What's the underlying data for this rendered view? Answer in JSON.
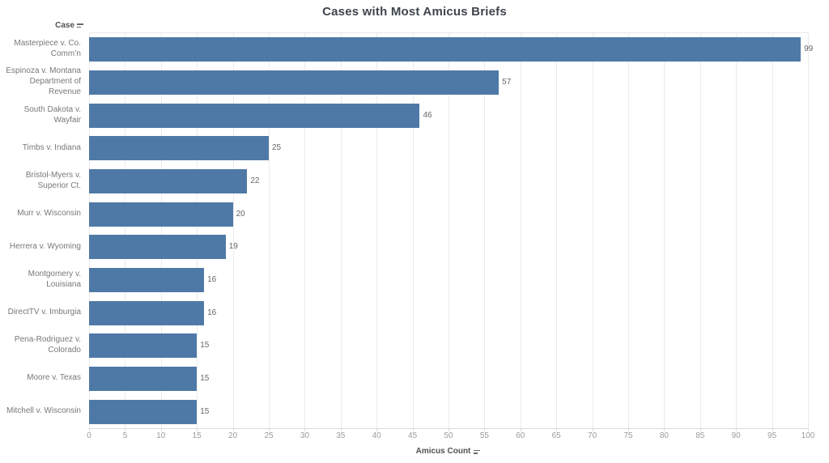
{
  "title": "Cases with Most Amicus Briefs",
  "row_axis": {
    "label": "Case",
    "sort_icon": "sort-descending-icon"
  },
  "x_axis": {
    "label": "Amicus Count",
    "sort_icon": "sort-descending-icon",
    "ticks": [
      0,
      5,
      10,
      15,
      20,
      25,
      30,
      35,
      40,
      45,
      50,
      55,
      60,
      65,
      70,
      75,
      80,
      85,
      90,
      95,
      100
    ]
  },
  "chart_data": {
    "type": "bar",
    "orientation": "horizontal",
    "title": "Cases with Most Amicus Briefs",
    "xlabel": "Amicus Count",
    "ylabel": "Case",
    "categories": [
      "Masterpiece v. Co. Comm’n",
      "Espinoza v. Montana Department of Revenue",
      "South Dakota v. Wayfair",
      "Timbs v. Indiana",
      "Bristol-Myers v. Superior Ct.",
      "Murr v. Wisconsin",
      "Herrera v. Wyoming",
      "Montgomery v. Louisiana",
      "DirectTV v. Imburgia",
      "Pena-Rodriguez v. Colorado",
      "Moore v. Texas",
      "Mitchell v. Wisconsin"
    ],
    "values": [
      99,
      57,
      46,
      25,
      22,
      20,
      19,
      16,
      16,
      15,
      15,
      15
    ],
    "xlim": [
      0,
      100
    ],
    "x_tick_step": 5,
    "grid": "vertical",
    "legend": "none",
    "bar_color": "#4e79a7"
  },
  "colors": {
    "bar": "#4e79a7",
    "title_text": "#3f454e",
    "category_text": "#787878",
    "tick_text": "#9b9b9b",
    "value_text": "#666666",
    "axis_header_text": "#525252",
    "gridline": "#ebebeb"
  }
}
